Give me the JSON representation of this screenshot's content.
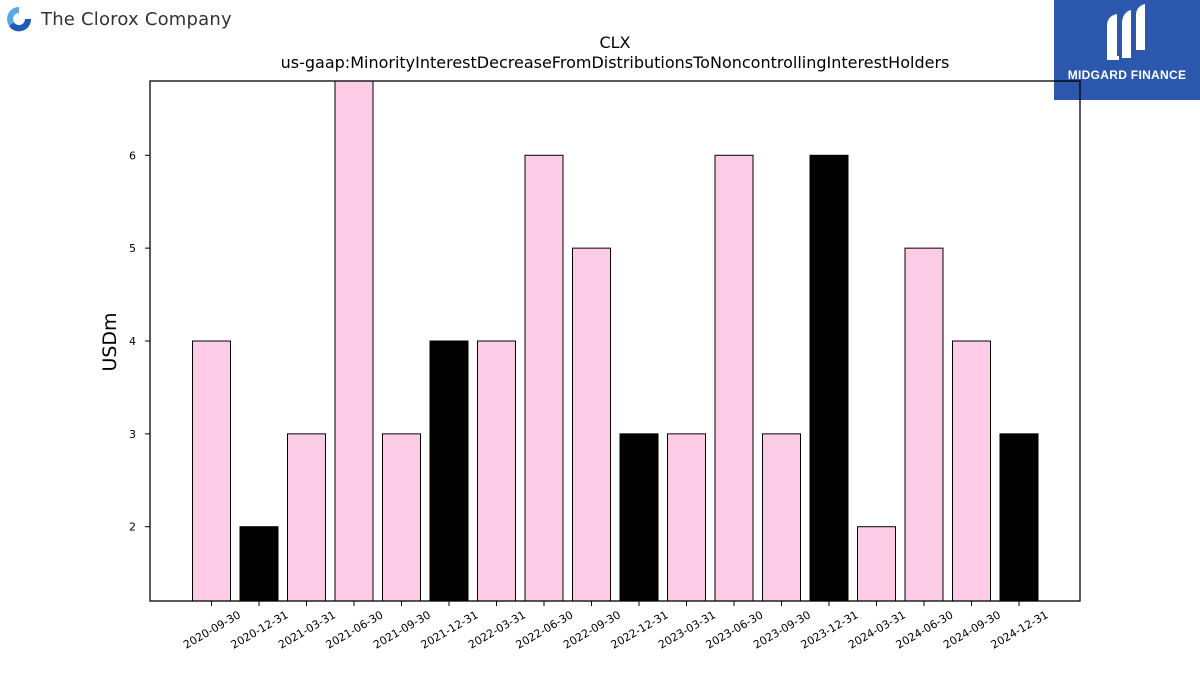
{
  "company": {
    "name": "The Clorox Company",
    "logo_icon": "clorox-c-logo-icon",
    "logo_colors": [
      "#5aa9e6",
      "#1e5bb8"
    ]
  },
  "brand": {
    "name": "MIDGARD FINANCE",
    "logo_icon": "midgard-m-logo-icon",
    "background": "#2b58ad"
  },
  "chart_data": {
    "type": "bar",
    "title": "CLX",
    "subtitle": "us-gaap:MinorityInterestDecreaseFromDistributionsToNoncontrollingInterestHolders",
    "xlabel": "",
    "ylabel": "USDm",
    "categories": [
      "2020-09-30",
      "2020-12-31",
      "2021-03-31",
      "2021-06-30",
      "2021-09-30",
      "2021-12-31",
      "2022-03-31",
      "2022-06-30",
      "2022-09-30",
      "2022-12-31",
      "2023-03-31",
      "2023-06-30",
      "2023-09-30",
      "2023-12-31",
      "2024-03-31",
      "2024-06-30",
      "2024-09-30",
      "2024-12-31"
    ],
    "values": [
      4,
      2,
      3,
      7,
      3,
      4,
      4,
      6,
      5,
      3,
      3,
      6,
      3,
      6,
      2,
      5,
      4,
      3
    ],
    "bar_colors": [
      "#fccce6",
      "#000000",
      "#fccce6",
      "#fccce6",
      "#fccce6",
      "#000000",
      "#fccce6",
      "#fccce6",
      "#fccce6",
      "#000000",
      "#fccce6",
      "#fccce6",
      "#fccce6",
      "#000000",
      "#fccce6",
      "#fccce6",
      "#fccce6",
      "#000000"
    ],
    "yticks": [
      2,
      3,
      4,
      5,
      6
    ],
    "ylim": [
      1.2,
      6.8
    ],
    "grid": false,
    "legend": "none"
  }
}
